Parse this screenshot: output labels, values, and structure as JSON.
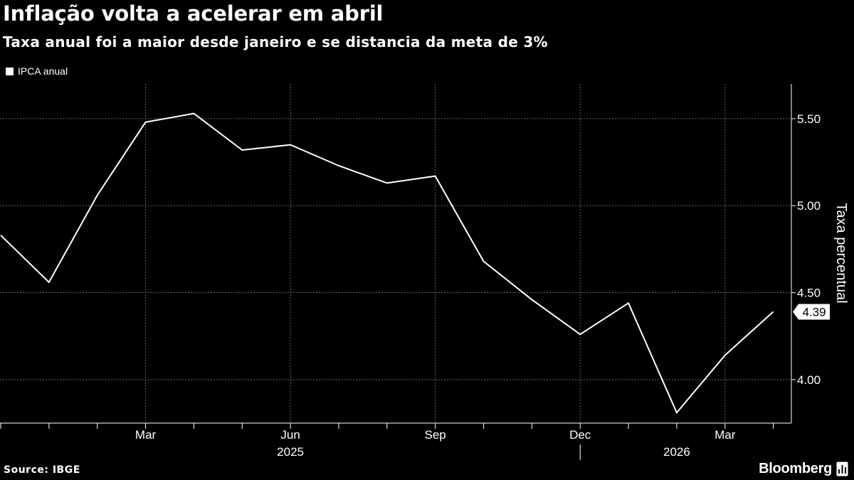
{
  "header": {
    "title": "Inflação volta a acelerar em abril",
    "subtitle": "Taxa anual foi a maior desde janeiro e se distancia da meta de 3%"
  },
  "footer": {
    "source": "Source: IBGE",
    "brand": "Bloomberg"
  },
  "colors": {
    "background": "#000000",
    "line": "#ffffff",
    "grid": "#666666"
  },
  "chart_data": {
    "type": "line",
    "title": "Inflação volta a acelerar em abril",
    "subtitle": "Taxa anual foi a maior desde janeiro e se distancia da meta de 3%",
    "ylabel": "Taxa percentual",
    "ylim": [
      3.75,
      5.7
    ],
    "yticks": [
      4.0,
      4.5,
      5.0,
      5.5
    ],
    "ytick_labels": [
      "4.00",
      "4.50",
      "5.00",
      "5.50"
    ],
    "xticks": [
      {
        "label": "Mar",
        "x": "2025-03"
      },
      {
        "label": "Jun",
        "x": "2025-06"
      },
      {
        "label": "Sep",
        "x": "2025-09"
      },
      {
        "label": "Dec",
        "x": "2025-12"
      },
      {
        "label": "Mar",
        "x": "2026-03"
      }
    ],
    "year_labels": [
      {
        "label": "2025",
        "x": "2025-06"
      },
      {
        "label": "2026",
        "x": "2026-02"
      }
    ],
    "grid": true,
    "legend": "top-left",
    "last_value_label": "4.39",
    "series": [
      {
        "name": "IPCA anual",
        "x": [
          "2024-12",
          "2025-01",
          "2025-02",
          "2025-03",
          "2025-04",
          "2025-05",
          "2025-06",
          "2025-07",
          "2025-08",
          "2025-09",
          "2025-10",
          "2025-11",
          "2025-12",
          "2026-01",
          "2026-02",
          "2026-03",
          "2026-04"
        ],
        "values": [
          4.83,
          4.56,
          5.06,
          5.48,
          5.53,
          5.32,
          5.35,
          5.23,
          5.13,
          5.17,
          4.68,
          4.46,
          4.26,
          4.44,
          3.81,
          4.14,
          4.39
        ]
      }
    ]
  }
}
